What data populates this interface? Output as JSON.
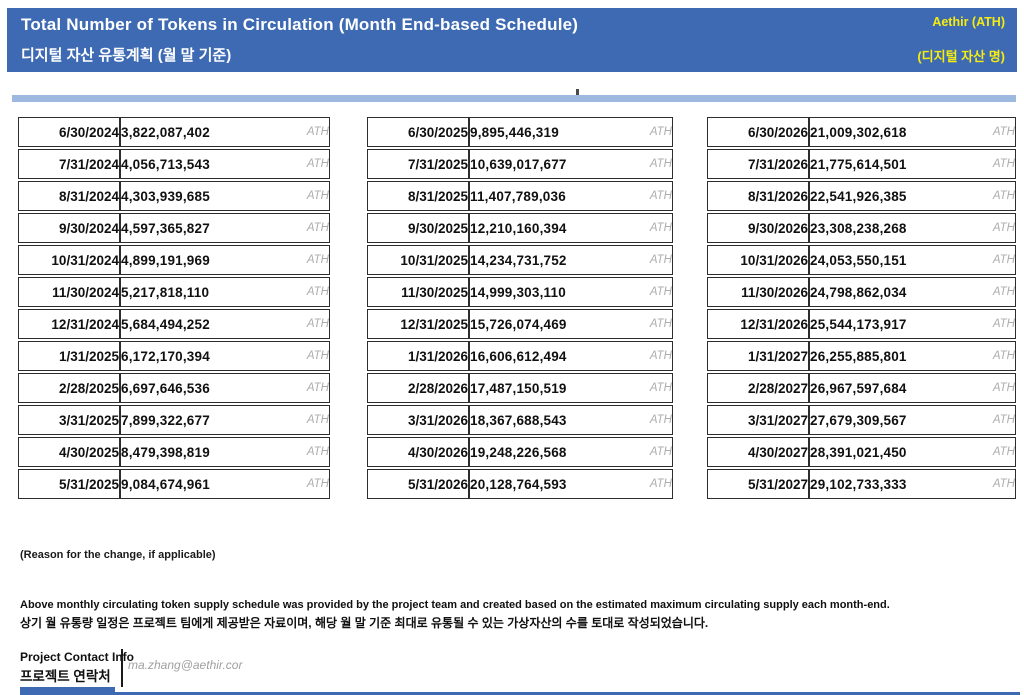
{
  "header": {
    "title_en": "Total Number of Tokens in Circulation (Month End-based Schedule)",
    "title_ko": "디지털 자산 유통계획 (월 말 기준)",
    "asset_name": "Aethir (ATH)",
    "asset_label_ko": "(디지털 자산 명)",
    "bg_color": "#3d6ab2",
    "accent_text_color": "#f6ec11"
  },
  "accent_bar_color": "#9db9e0",
  "unit": "ATH",
  "tables": [
    {
      "rows": [
        {
          "date": "6/30/2024",
          "value": "3,822,087,402"
        },
        {
          "date": "7/31/2024",
          "value": "4,056,713,543"
        },
        {
          "date": "8/31/2024",
          "value": "4,303,939,685"
        },
        {
          "date": "9/30/2024",
          "value": "4,597,365,827"
        },
        {
          "date": "10/31/2024",
          "value": "4,899,191,969"
        },
        {
          "date": "11/30/2024",
          "value": "5,217,818,110"
        },
        {
          "date": "12/31/2024",
          "value": "5,684,494,252"
        },
        {
          "date": "1/31/2025",
          "value": "6,172,170,394"
        },
        {
          "date": "2/28/2025",
          "value": "6,697,646,536"
        },
        {
          "date": "3/31/2025",
          "value": "7,899,322,677"
        },
        {
          "date": "4/30/2025",
          "value": "8,479,398,819"
        },
        {
          "date": "5/31/2025",
          "value": "9,084,674,961"
        }
      ]
    },
    {
      "rows": [
        {
          "date": "6/30/2025",
          "value": "9,895,446,319"
        },
        {
          "date": "7/31/2025",
          "value": "10,639,017,677"
        },
        {
          "date": "8/31/2025",
          "value": "11,407,789,036"
        },
        {
          "date": "9/30/2025",
          "value": "12,210,160,394"
        },
        {
          "date": "10/31/2025",
          "value": "14,234,731,752"
        },
        {
          "date": "11/30/2025",
          "value": "14,999,303,110"
        },
        {
          "date": "12/31/2025",
          "value": "15,726,074,469"
        },
        {
          "date": "1/31/2026",
          "value": "16,606,612,494"
        },
        {
          "date": "2/28/2026",
          "value": "17,487,150,519"
        },
        {
          "date": "3/31/2026",
          "value": "18,367,688,543"
        },
        {
          "date": "4/30/2026",
          "value": "19,248,226,568"
        },
        {
          "date": "5/31/2026",
          "value": "20,128,764,593"
        }
      ]
    },
    {
      "rows": [
        {
          "date": "6/30/2026",
          "value": "21,009,302,618"
        },
        {
          "date": "7/31/2026",
          "value": "21,775,614,501"
        },
        {
          "date": "8/31/2026",
          "value": "22,541,926,385"
        },
        {
          "date": "9/30/2026",
          "value": "23,308,238,268"
        },
        {
          "date": "10/31/2026",
          "value": "24,053,550,151"
        },
        {
          "date": "11/30/2026",
          "value": "24,798,862,034"
        },
        {
          "date": "12/31/2026",
          "value": "25,544,173,917"
        },
        {
          "date": "1/31/2027",
          "value": "26,255,885,801"
        },
        {
          "date": "2/28/2027",
          "value": "26,967,597,684"
        },
        {
          "date": "3/31/2027",
          "value": "27,679,309,567"
        },
        {
          "date": "4/30/2027",
          "value": "28,391,021,450"
        },
        {
          "date": "5/31/2027",
          "value": "29,102,733,333"
        }
      ]
    }
  ],
  "notes": {
    "reason_label": "(Reason for the change, if applicable)",
    "disclaimer_en": "Above monthly circulating token supply schedule was provided by the project team and created based on the estimated maximum circulating supply each month-end.",
    "disclaimer_ko": "상기 월 유통량 일정은 프로젝트 팀에게 제공받은 자료이며, 해당 월 말 기준 최대로 유통될 수 있는 가상자산의 수를 토대로 작성되었습니다."
  },
  "contact": {
    "label_en": "Project Contact Info",
    "label_ko": "프로젝트 연락처",
    "email": "ma.zhang@aethir.cor"
  }
}
